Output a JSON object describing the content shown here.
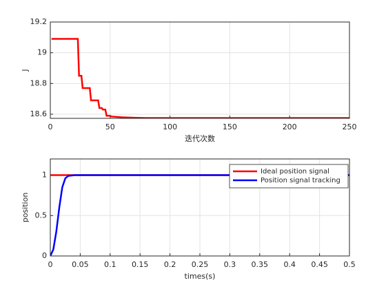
{
  "chart_data": [
    {
      "type": "line",
      "xlabel": "迭代次数",
      "ylabel": "J",
      "x": [
        1,
        23,
        24,
        26,
        27,
        33,
        34,
        40,
        41,
        43,
        44,
        46,
        47,
        50,
        51,
        60,
        70,
        80,
        250
      ],
      "series": [
        {
          "color": "#ff0000",
          "values": [
            19.09,
            19.09,
            18.85,
            18.85,
            18.77,
            18.77,
            18.69,
            18.69,
            18.64,
            18.64,
            18.63,
            18.63,
            18.59,
            18.59,
            18.585,
            18.58,
            18.577,
            18.575,
            18.575
          ]
        }
      ],
      "xlim": [
        0,
        250
      ],
      "xticks": [
        0,
        50,
        100,
        150,
        200,
        250
      ],
      "ylim": [
        18.573,
        19.2
      ],
      "yticks": [
        18.6,
        18.8,
        19,
        19.2
      ],
      "grid": true
    },
    {
      "type": "line",
      "xlabel": "times(s)",
      "ylabel": "position",
      "x": [
        0,
        0.005,
        0.01,
        0.015,
        0.02,
        0.025,
        0.03,
        0.035,
        0.04,
        0.05,
        0.5
      ],
      "series": [
        {
          "name": "Ideal position signal",
          "color": "#ff0000",
          "values": [
            1,
            1,
            1,
            1,
            1,
            1,
            1,
            1,
            1,
            1,
            1
          ]
        },
        {
          "name": "Position signal tracking",
          "color": "#0000ff",
          "values": [
            0,
            0.08,
            0.3,
            0.6,
            0.85,
            0.96,
            0.99,
            0.995,
            1,
            1,
            1
          ]
        }
      ],
      "xlim": [
        0,
        0.5
      ],
      "xticks": [
        0,
        0.05,
        0.1,
        0.15,
        0.2,
        0.25,
        0.3,
        0.35,
        0.4,
        0.45,
        0.5
      ],
      "ylim": [
        0,
        1.2
      ],
      "yticks": [
        0,
        0.5,
        1
      ],
      "grid": true,
      "legend": "upper-right"
    }
  ]
}
